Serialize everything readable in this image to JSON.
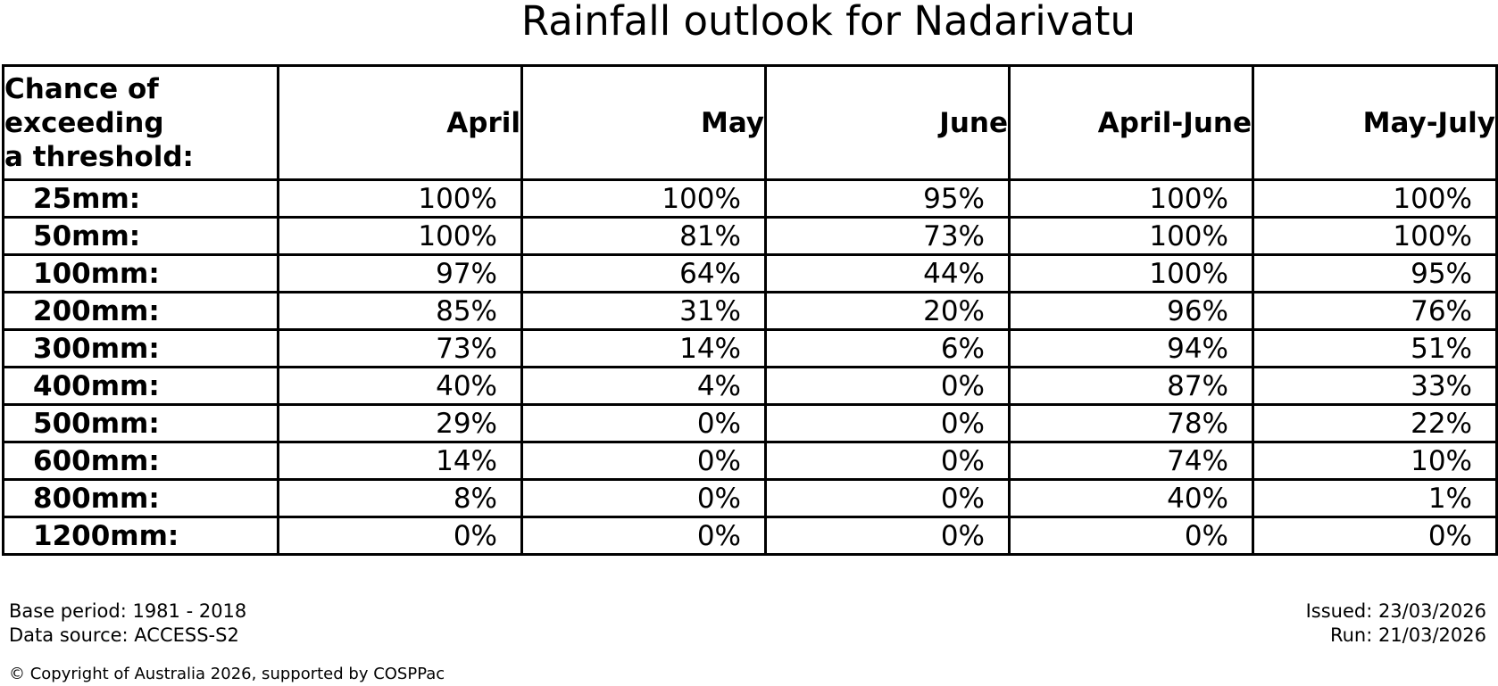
{
  "title": "Rainfall outlook for Nadarivatu",
  "colors": {
    "background": "#ffffff",
    "text": "#000000",
    "border": "#000000"
  },
  "table": {
    "corner_header": "Chance of\nexceeding\na threshold:",
    "columns": [
      "April",
      "May",
      "June",
      "April-June",
      "May-July"
    ],
    "rows": [
      {
        "label": "25mm:",
        "values": [
          "100%",
          "100%",
          "95%",
          "100%",
          "100%"
        ]
      },
      {
        "label": "50mm:",
        "values": [
          "100%",
          "81%",
          "73%",
          "100%",
          "100%"
        ]
      },
      {
        "label": "100mm:",
        "values": [
          "97%",
          "64%",
          "44%",
          "100%",
          "95%"
        ]
      },
      {
        "label": "200mm:",
        "values": [
          "85%",
          "31%",
          "20%",
          "96%",
          "76%"
        ]
      },
      {
        "label": "300mm:",
        "values": [
          "73%",
          "14%",
          "6%",
          "94%",
          "51%"
        ]
      },
      {
        "label": "400mm:",
        "values": [
          "40%",
          "4%",
          "0%",
          "87%",
          "33%"
        ]
      },
      {
        "label": "500mm:",
        "values": [
          "29%",
          "0%",
          "0%",
          "78%",
          "22%"
        ]
      },
      {
        "label": "600mm:",
        "values": [
          "14%",
          "0%",
          "0%",
          "74%",
          "10%"
        ]
      },
      {
        "label": "800mm:",
        "values": [
          "8%",
          "0%",
          "0%",
          "40%",
          "1%"
        ]
      },
      {
        "label": "1200mm:",
        "values": [
          "0%",
          "0%",
          "0%",
          "0%",
          "0%"
        ]
      }
    ]
  },
  "footer": {
    "base_period": "Base period: 1981 - 2018",
    "data_source": "Data source: ACCESS-S2",
    "issued": "Issued: 23/03/2026",
    "run": "Run: 21/03/2026",
    "copyright": "© Copyright of Australia 2026, supported by COSPPac"
  },
  "chart_data": {
    "type": "table",
    "title": "Rainfall outlook for Nadarivatu",
    "row_header_label": "Chance of exceeding a threshold:",
    "columns": [
      "April",
      "May",
      "June",
      "April-June",
      "May-July"
    ],
    "thresholds_mm": [
      25,
      50,
      100,
      200,
      300,
      400,
      500,
      600,
      800,
      1200
    ],
    "values_percent": [
      [
        100,
        100,
        95,
        100,
        100
      ],
      [
        100,
        81,
        73,
        100,
        100
      ],
      [
        97,
        64,
        44,
        100,
        95
      ],
      [
        85,
        31,
        20,
        96,
        76
      ],
      [
        73,
        14,
        6,
        94,
        51
      ],
      [
        40,
        4,
        0,
        87,
        33
      ],
      [
        29,
        0,
        0,
        78,
        22
      ],
      [
        14,
        0,
        0,
        74,
        10
      ],
      [
        8,
        0,
        0,
        40,
        1
      ],
      [
        0,
        0,
        0,
        0,
        0
      ]
    ],
    "annotations": [
      "Base period: 1981 - 2018",
      "Data source: ACCESS-S2",
      "Issued: 23/03/2026",
      "Run: 21/03/2026",
      "© Copyright of Australia 2026, supported by COSPPac"
    ]
  }
}
